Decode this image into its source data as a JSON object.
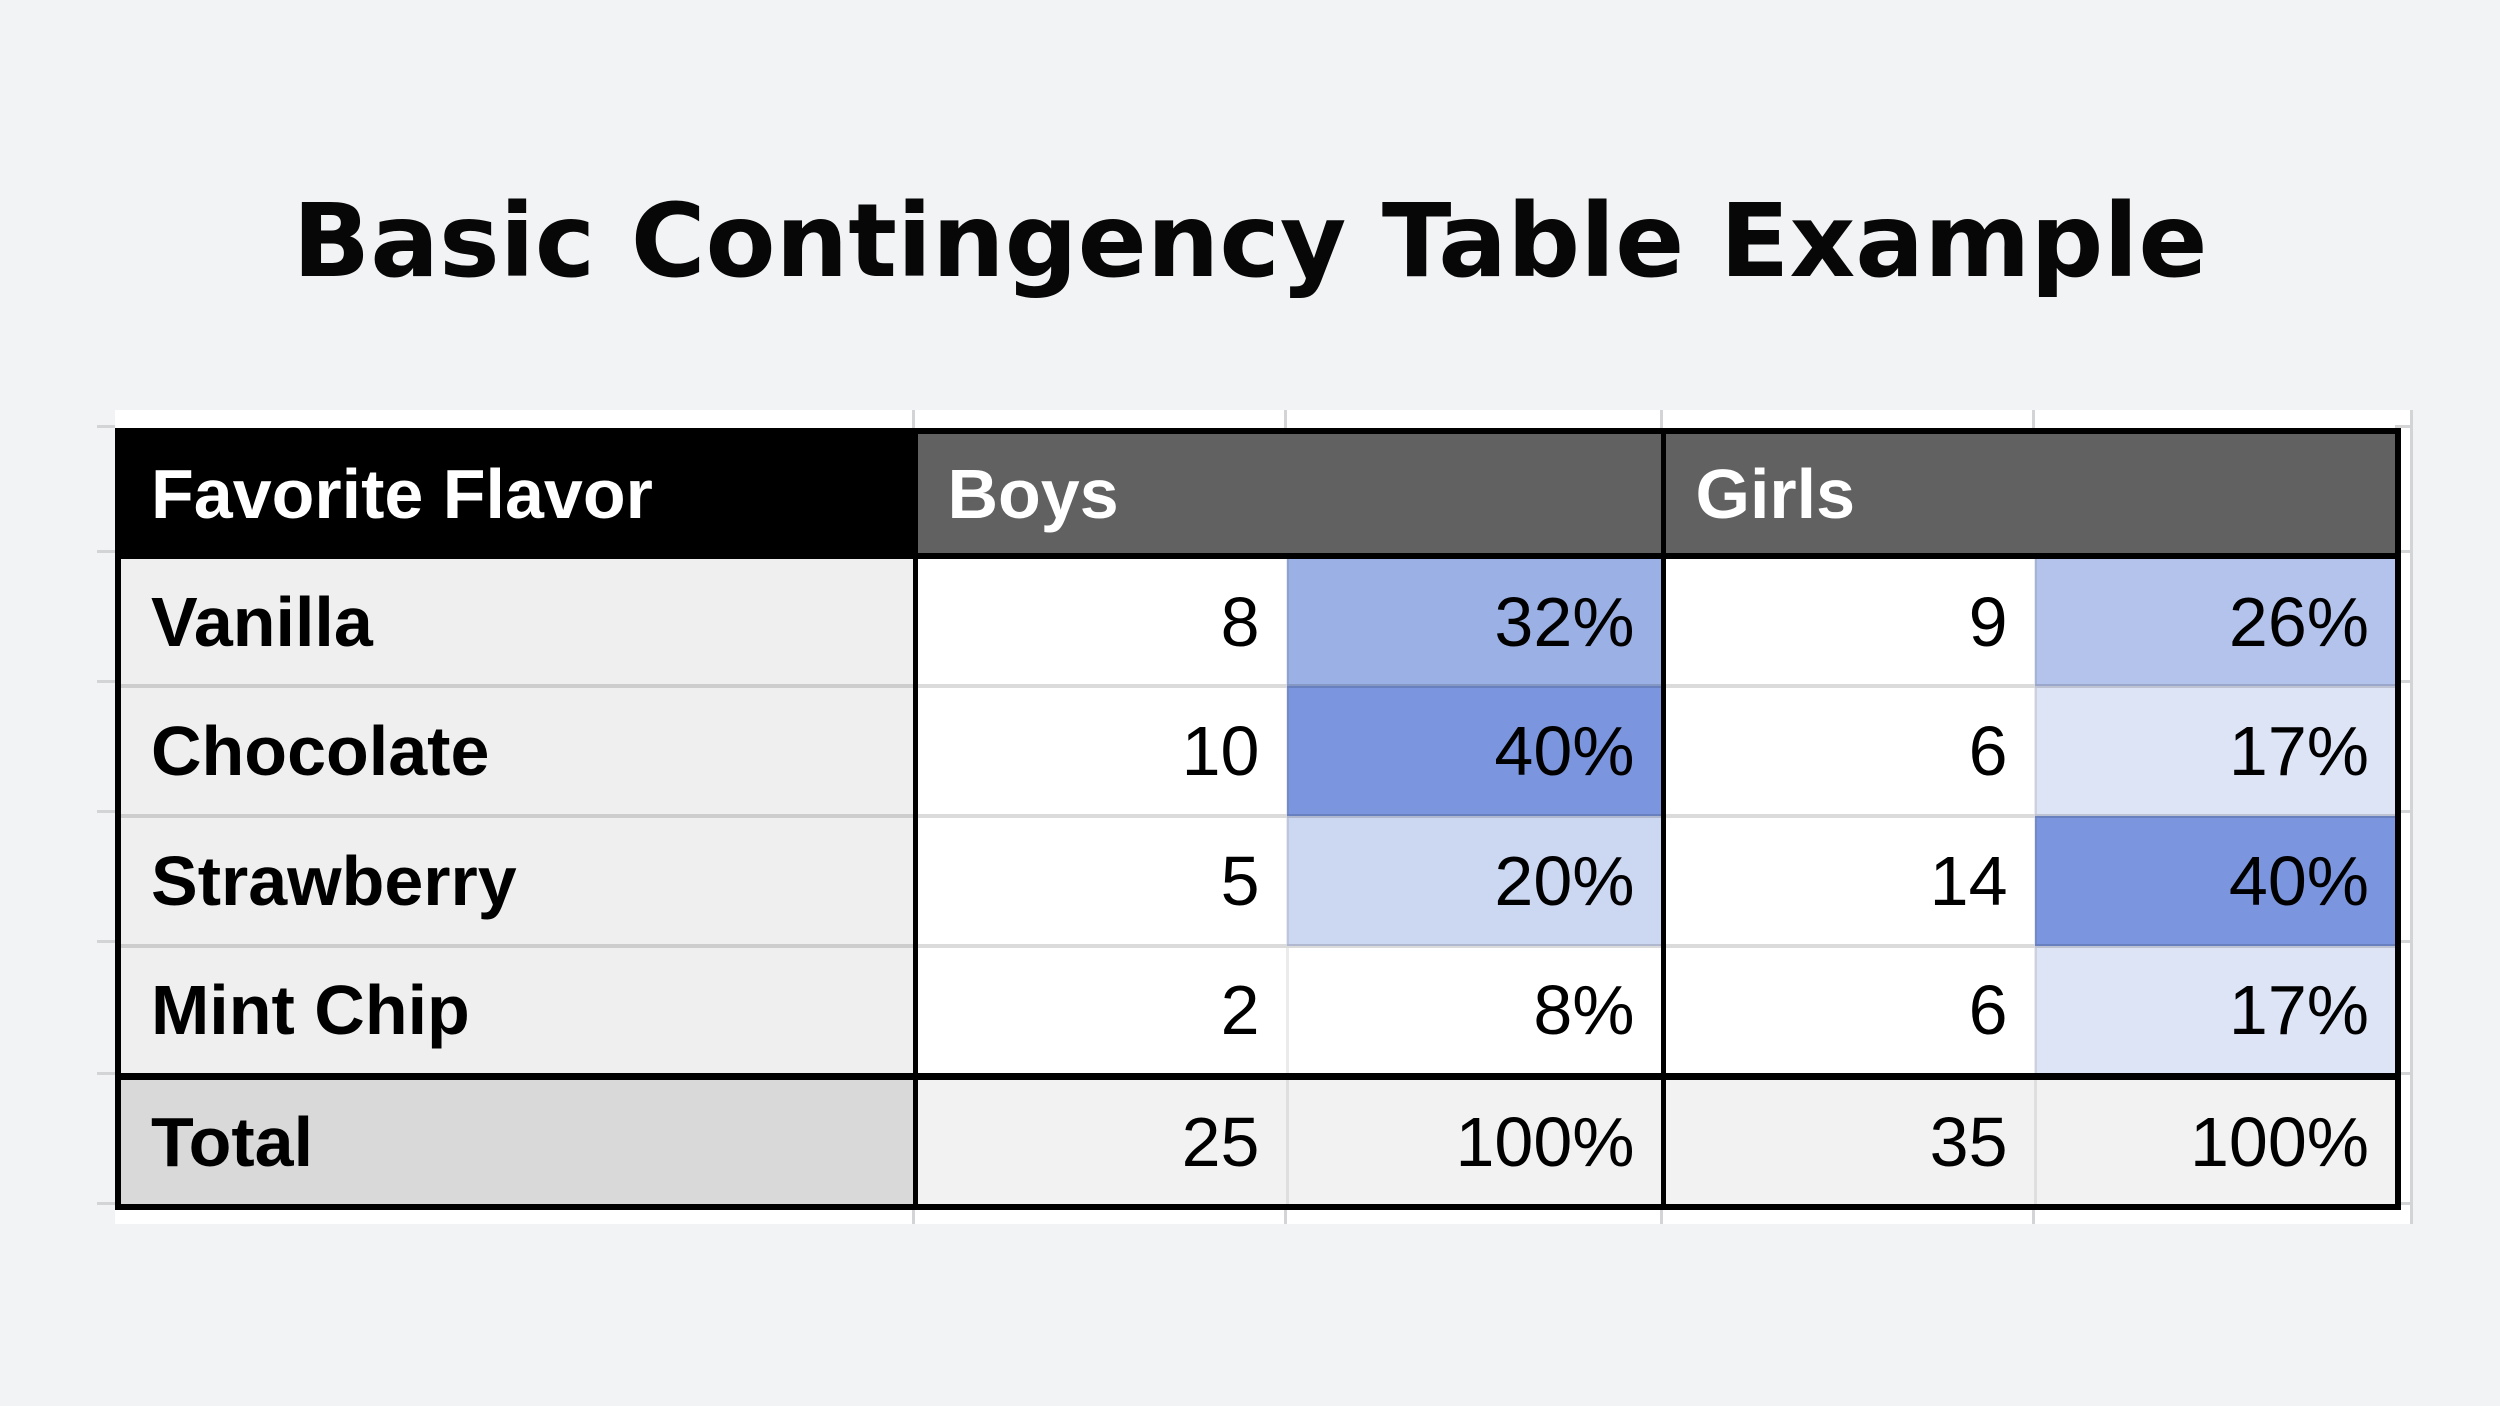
{
  "title": "Basic Contingency Table Example",
  "colors": {
    "page_bg": "#f2f3f5",
    "table_border": "#000000",
    "header_label_bg": "#000000",
    "header_group_bg": "#616161",
    "header_text": "#ffffff",
    "flavor_col_bg": "#efefef",
    "count_col_bg": "#ffffff",
    "total_label_bg": "#d9d9d9",
    "total_value_bg": "#f2f2f2",
    "gridline": "#d3d4d6",
    "pct_scale_dark": "#7b96df",
    "pct_scale_light": "#dce4f6"
  },
  "table": {
    "header": {
      "label": "Favorite Flavor",
      "boys": "Boys",
      "girls": "Girls"
    },
    "rows": [
      {
        "label": "Vanilla",
        "boys_count": "8",
        "boys_pct": "32%",
        "boys_pct_bg": "#9bb0e4",
        "girls_count": "9",
        "girls_pct": "26%",
        "girls_pct_bg": "#b4c3ec"
      },
      {
        "label": "Chocolate",
        "boys_count": "10",
        "boys_pct": "40%",
        "boys_pct_bg": "#7b96df",
        "girls_count": "6",
        "girls_pct": "17%",
        "girls_pct_bg": "#dce4f6"
      },
      {
        "label": "Strawberry",
        "boys_count": "5",
        "boys_pct": "20%",
        "boys_pct_bg": "#ccd7f2",
        "girls_count": "14",
        "girls_pct": "40%",
        "girls_pct_bg": "#7b96df"
      },
      {
        "label": "Mint Chip",
        "boys_count": "2",
        "boys_pct": "8%",
        "boys_pct_bg": "#ffffff",
        "girls_count": "6",
        "girls_pct": "17%",
        "girls_pct_bg": "#dce4f6"
      }
    ],
    "total": {
      "label": "Total",
      "boys_count": "25",
      "boys_pct": "100%",
      "girls_count": "35",
      "girls_pct": "100%"
    }
  },
  "chart_data": {
    "type": "table",
    "title": "Basic Contingency Table Example",
    "columns": [
      "Favorite Flavor",
      "Boys Count",
      "Boys %",
      "Girls Count",
      "Girls %"
    ],
    "rows": [
      [
        "Vanilla",
        8,
        "32%",
        9,
        "26%"
      ],
      [
        "Chocolate",
        10,
        "40%",
        6,
        "17%"
      ],
      [
        "Strawberry",
        5,
        "20%",
        14,
        "40%"
      ],
      [
        "Mint Chip",
        2,
        "8%",
        6,
        "17%"
      ],
      [
        "Total",
        25,
        "100%",
        35,
        "100%"
      ]
    ],
    "notes": "Percent cells shaded blue proportional to value: 40% darkest (#7b96df), 8% unshaded (white)."
  }
}
